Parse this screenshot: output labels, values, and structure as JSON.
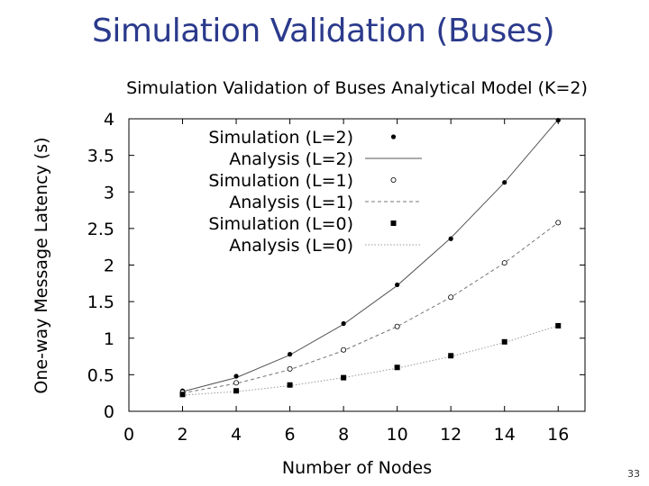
{
  "slide": {
    "title": "Simulation Validation (Buses)",
    "page_number": "33"
  },
  "chart_data": {
    "type": "line",
    "title": "Simulation Validation of Buses Analytical Model (K=2)",
    "xlabel": "Number of Nodes",
    "ylabel": "One-way Message Latency (s)",
    "xlim": [
      0,
      17
    ],
    "ylim": [
      0,
      4
    ],
    "xticks": [
      0,
      2,
      4,
      6,
      8,
      10,
      12,
      14,
      16
    ],
    "yticks": [
      0,
      0.5,
      1,
      1.5,
      2,
      2.5,
      3,
      3.5,
      4
    ],
    "ytick_labels": [
      "0",
      "0.5",
      "1",
      "1.5",
      "2",
      "2.5",
      "3",
      "3.5",
      "4"
    ],
    "grid": false,
    "legend_position": "top-right",
    "x": [
      2,
      4,
      6,
      8,
      10,
      12,
      14,
      16
    ],
    "series": [
      {
        "key": "sim_l2",
        "name": "Simulation (L=2)",
        "kind": "points",
        "marker": "filled-circle",
        "values": [
          0.28,
          0.48,
          0.78,
          1.2,
          1.73,
          2.36,
          3.13,
          3.98
        ]
      },
      {
        "key": "ana_l2",
        "name": "Analysis (L=2)",
        "kind": "line",
        "dash": "solid",
        "color": "#555555",
        "values": [
          0.27,
          0.46,
          0.77,
          1.19,
          1.72,
          2.37,
          3.13,
          3.99
        ]
      },
      {
        "key": "sim_l1",
        "name": "Simulation (L=1)",
        "kind": "points",
        "marker": "open-circle",
        "values": [
          0.26,
          0.39,
          0.58,
          0.84,
          1.16,
          1.56,
          2.03,
          2.58
        ]
      },
      {
        "key": "ana_l1",
        "name": "Analysis (L=1)",
        "kind": "line",
        "dash": "dashed",
        "color": "#777777",
        "values": [
          0.25,
          0.38,
          0.57,
          0.83,
          1.16,
          1.56,
          2.03,
          2.58
        ]
      },
      {
        "key": "sim_l0",
        "name": "Simulation (L=0)",
        "kind": "points",
        "marker": "filled-square",
        "values": [
          0.23,
          0.28,
          0.36,
          0.46,
          0.6,
          0.76,
          0.95,
          1.17
        ]
      },
      {
        "key": "ana_l0",
        "name": "Analysis (L=0)",
        "kind": "line",
        "dash": "dotted",
        "color": "#999999",
        "values": [
          0.22,
          0.27,
          0.35,
          0.46,
          0.59,
          0.75,
          0.94,
          1.17
        ]
      }
    ]
  }
}
